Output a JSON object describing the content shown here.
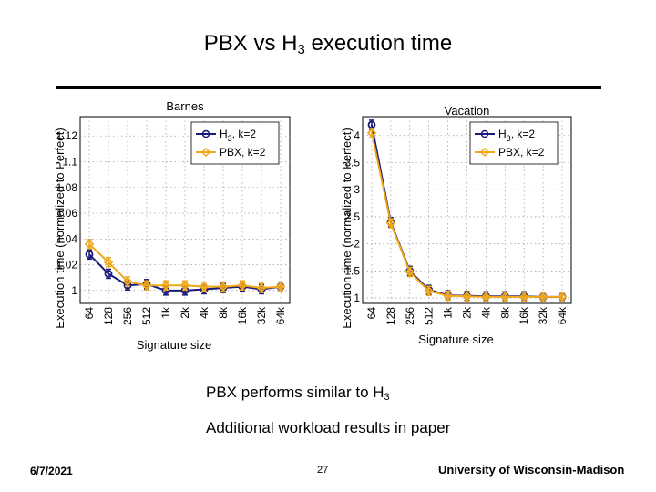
{
  "slide": {
    "title_main": "PBX vs H",
    "title_sub": "3",
    "title_rest": " execution time",
    "bullet1_main": "PBX performs similar to H",
    "bullet1_sub": "3",
    "bullet2": "Additional workload results in paper",
    "date": "6/7/2021",
    "page": "27",
    "affiliation": "University of Wisconsin-Madison"
  },
  "colors": {
    "h3": "#1a1a7a",
    "pbx": "#f0a818",
    "grid": "#888888"
  },
  "chart_data": [
    {
      "type": "line",
      "title": "Barnes",
      "xlabel": "Signature size",
      "ylabel": "Execution time (normalized to Perfect)",
      "categories": [
        "64",
        "128",
        "256",
        "512",
        "1k",
        "2k",
        "4k",
        "8k",
        "16k",
        "32k",
        "64k"
      ],
      "yticks": [
        "1",
        "1.02",
        "1.04",
        "1.06",
        "1.08",
        "1.1",
        "1.12"
      ],
      "ylim": [
        0.99,
        1.135
      ],
      "grid": true,
      "legend_position": "top-right",
      "series": [
        {
          "name": "H3, k=2",
          "legend_main": "H",
          "legend_sub": "3",
          "legend_rest": ", k=2",
          "marker": "circle",
          "values": [
            1.028,
            1.013,
            1.004,
            1.005,
            1.0,
            1.0,
            1.001,
            1.002,
            1.003,
            1.001,
            1.003
          ]
        },
        {
          "name": "PBX, k=2",
          "legend_main": "PBX, k=2",
          "legend_sub": "",
          "legend_rest": "",
          "marker": "diamond",
          "values": [
            1.036,
            1.022,
            1.007,
            1.004,
            1.004,
            1.004,
            1.003,
            1.003,
            1.004,
            1.002,
            1.003
          ]
        }
      ]
    },
    {
      "type": "line",
      "title": "Vacation",
      "xlabel": "Signature size",
      "ylabel": "Execution time (normalized to Perfect)",
      "categories": [
        "64",
        "128",
        "256",
        "512",
        "1k",
        "2k",
        "4k",
        "8k",
        "16k",
        "32k",
        "64k"
      ],
      "yticks": [
        "1",
        "1.5",
        "2",
        "2.5",
        "3",
        "3.5",
        "4"
      ],
      "ylim": [
        0.9,
        4.35
      ],
      "grid": true,
      "legend_position": "top-right",
      "series": [
        {
          "name": "H3, k=2",
          "legend_main": "H",
          "legend_sub": "3",
          "legend_rest": ", k=2",
          "marker": "circle",
          "values": [
            4.2,
            2.4,
            1.5,
            1.15,
            1.05,
            1.04,
            1.03,
            1.03,
            1.03,
            1.02,
            1.02
          ]
        },
        {
          "name": "PBX, k=2",
          "legend_main": "PBX, k=2",
          "legend_sub": "",
          "legend_rest": "",
          "marker": "diamond",
          "values": [
            4.05,
            2.38,
            1.48,
            1.13,
            1.04,
            1.03,
            1.02,
            1.02,
            1.02,
            1.02,
            1.02
          ]
        }
      ]
    }
  ]
}
